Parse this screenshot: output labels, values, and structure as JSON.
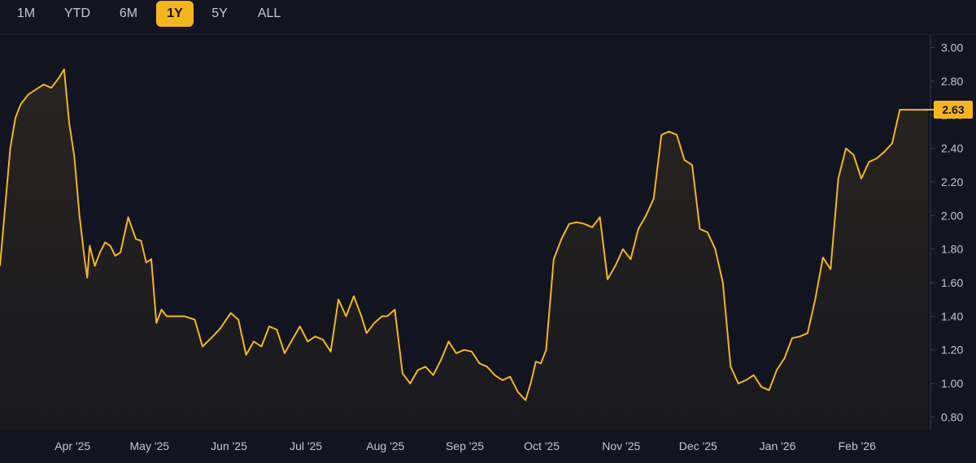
{
  "range_tabs": [
    {
      "label": "1M",
      "active": false
    },
    {
      "label": "YTD",
      "active": false
    },
    {
      "label": "6M",
      "active": false
    },
    {
      "label": "1Y",
      "active": true
    },
    {
      "label": "5Y",
      "active": false
    },
    {
      "label": "ALL",
      "active": false
    }
  ],
  "colors": {
    "background": "#12141f",
    "line": "#f3b61f",
    "accent": "#f3b61f",
    "axis_line": "#3a3e4a"
  },
  "chart_data": {
    "type": "area",
    "title": "",
    "xlabel": "",
    "ylabel": "",
    "ylim": [
      0.72,
      3.08
    ],
    "y_ticks": [
      "0.80",
      "1.00",
      "1.20",
      "1.40",
      "1.60",
      "1.80",
      "2.00",
      "2.20",
      "2.40",
      "2.60",
      "2.80",
      "3.00"
    ],
    "x_ticks": [
      "Apr '25",
      "May '25",
      "Jun '25",
      "Jul '25",
      "Aug '25",
      "Sep '25",
      "Oct '25",
      "Nov '25",
      "Dec '25",
      "Jan '26",
      "Feb '26"
    ],
    "grid": false,
    "last_value_label": "2.63",
    "series": [
      {
        "x": [
          "2025-03-04",
          "2025-03-06",
          "2025-03-08",
          "2025-03-10",
          "2025-03-12",
          "2025-03-15",
          "2025-03-18",
          "2025-03-21",
          "2025-03-24",
          "2025-03-27",
          "2025-03-29",
          "2025-03-31",
          "2025-04-02",
          "2025-04-04",
          "2025-04-06",
          "2025-04-07",
          "2025-04-08",
          "2025-04-10",
          "2025-04-12",
          "2025-04-14",
          "2025-04-16",
          "2025-04-18",
          "2025-04-20",
          "2025-04-23",
          "2025-04-26",
          "2025-04-28",
          "2025-04-30",
          "2025-05-02",
          "2025-05-04",
          "2025-05-06",
          "2025-05-08",
          "2025-05-11",
          "2025-05-15",
          "2025-05-19",
          "2025-05-22",
          "2025-05-26",
          "2025-05-29",
          "2025-06-02",
          "2025-06-05",
          "2025-06-08",
          "2025-06-11",
          "2025-06-14",
          "2025-06-17",
          "2025-06-20",
          "2025-06-23",
          "2025-06-26",
          "2025-06-29",
          "2025-07-02",
          "2025-07-05",
          "2025-07-08",
          "2025-07-11",
          "2025-07-14",
          "2025-07-17",
          "2025-07-20",
          "2025-07-23",
          "2025-07-25",
          "2025-07-28",
          "2025-07-31",
          "2025-08-02",
          "2025-08-05",
          "2025-08-08",
          "2025-08-11",
          "2025-08-14",
          "2025-08-17",
          "2025-08-20",
          "2025-08-23",
          "2025-08-26",
          "2025-08-29",
          "2025-09-01",
          "2025-09-04",
          "2025-09-07",
          "2025-09-10",
          "2025-09-13",
          "2025-09-16",
          "2025-09-19",
          "2025-09-22",
          "2025-09-25",
          "2025-09-27",
          "2025-09-29",
          "2025-10-01",
          "2025-10-03",
          "2025-10-06",
          "2025-10-09",
          "2025-10-12",
          "2025-10-15",
          "2025-10-18",
          "2025-10-21",
          "2025-10-24",
          "2025-10-27",
          "2025-10-30",
          "2025-11-02",
          "2025-11-05",
          "2025-11-08",
          "2025-11-11",
          "2025-11-14",
          "2025-11-17",
          "2025-11-20",
          "2025-11-23",
          "2025-11-26",
          "2025-11-29",
          "2025-12-02",
          "2025-12-05",
          "2025-12-08",
          "2025-12-11",
          "2025-12-14",
          "2025-12-17",
          "2025-12-20",
          "2025-12-23",
          "2025-12-26",
          "2025-12-29",
          "2026-01-01",
          "2026-01-04",
          "2026-01-07",
          "2026-01-10",
          "2026-01-13",
          "2026-01-16",
          "2026-01-19",
          "2026-01-22",
          "2026-01-25",
          "2026-01-28",
          "2026-01-31",
          "2026-02-03",
          "2026-02-06",
          "2026-02-09",
          "2026-02-12",
          "2026-02-15",
          "2026-02-18",
          "2026-02-21",
          "2026-02-24",
          "2026-02-27",
          "2026-03-01"
        ],
        "values": [
          1.7,
          2.05,
          2.4,
          2.58,
          2.66,
          2.72,
          2.75,
          2.78,
          2.76,
          2.82,
          2.87,
          2.55,
          2.35,
          2.0,
          1.74,
          1.63,
          1.82,
          1.7,
          1.78,
          1.84,
          1.82,
          1.76,
          1.78,
          1.99,
          1.86,
          1.85,
          1.72,
          1.74,
          1.36,
          1.44,
          1.4,
          1.4,
          1.4,
          1.38,
          1.22,
          1.28,
          1.33,
          1.42,
          1.38,
          1.17,
          1.25,
          1.22,
          1.34,
          1.32,
          1.18,
          1.26,
          1.34,
          1.25,
          1.28,
          1.26,
          1.19,
          1.5,
          1.4,
          1.52,
          1.4,
          1.3,
          1.36,
          1.4,
          1.4,
          1.44,
          1.06,
          1.0,
          1.08,
          1.1,
          1.05,
          1.14,
          1.25,
          1.18,
          1.2,
          1.19,
          1.12,
          1.1,
          1.05,
          1.02,
          1.04,
          0.95,
          0.9,
          1.0,
          1.13,
          1.12,
          1.2,
          1.74,
          1.86,
          1.95,
          1.96,
          1.95,
          1.93,
          1.99,
          1.62,
          1.7,
          1.8,
          1.74,
          1.92,
          2.0,
          2.1,
          2.48,
          2.5,
          2.48,
          2.33,
          2.3,
          1.92,
          1.9,
          1.8,
          1.6,
          1.1,
          1.0,
          1.02,
          1.05,
          0.98,
          0.96,
          1.08,
          1.15,
          1.27,
          1.28,
          1.3,
          1.5,
          1.75,
          1.68,
          2.22,
          2.4,
          2.36,
          2.22,
          2.32,
          2.34,
          2.38,
          2.43,
          2.63,
          2.63,
          2.63,
          2.63,
          2.63
        ]
      }
    ]
  }
}
